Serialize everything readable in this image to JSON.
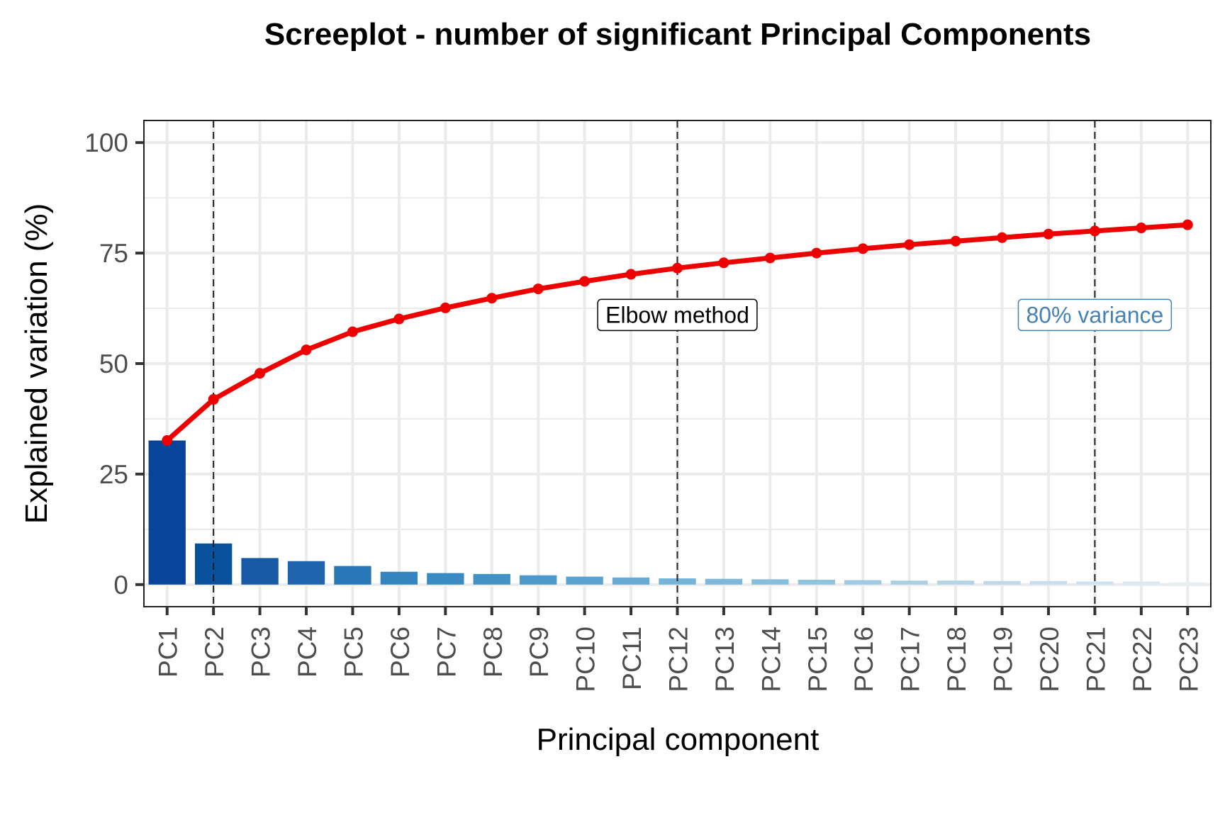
{
  "chart_data": {
    "type": "bar",
    "title": "Screeplot - number of significant Principal Components",
    "xlabel": "Principal component",
    "ylabel": "Explained variation (%)",
    "ylim": [
      -5,
      105
    ],
    "yticks": [
      0,
      25,
      50,
      75,
      100
    ],
    "grid": true,
    "categories": [
      "PC1",
      "PC2",
      "PC3",
      "PC4",
      "PC5",
      "PC6",
      "PC7",
      "PC8",
      "PC9",
      "PC10",
      "PC11",
      "PC12",
      "PC13",
      "PC14",
      "PC15",
      "PC16",
      "PC17",
      "PC18",
      "PC19",
      "PC20",
      "PC21",
      "PC22",
      "PC23"
    ],
    "series": [
      {
        "kind": "bar",
        "values": [
          32.6,
          9.3,
          6.0,
          5.3,
          4.2,
          2.9,
          2.6,
          2.4,
          2.1,
          1.8,
          1.6,
          1.4,
          1.3,
          1.2,
          1.1,
          1.0,
          0.9,
          0.9,
          0.8,
          0.8,
          0.7,
          0.7,
          0.5
        ]
      },
      {
        "kind": "line",
        "color": "#ee0000",
        "values": [
          32.6,
          41.9,
          47.8,
          53.1,
          57.2,
          60.1,
          62.6,
          64.8,
          66.9,
          68.6,
          70.2,
          71.6,
          72.8,
          73.9,
          75.0,
          76.0,
          76.9,
          77.7,
          78.5,
          79.3,
          80.0,
          80.7,
          81.4
        ]
      }
    ],
    "bar_colors": [
      "#08459a",
      "#09519d",
      "#1759a4",
      "#1f64ac",
      "#2a77b8",
      "#3484c0",
      "#3a8ac3",
      "#4292c6",
      "#4b99ca",
      "#5aa2cf",
      "#66abd3",
      "#74b4d8",
      "#7db8da",
      "#85bddc",
      "#91c3de",
      "#9fcae1",
      "#a9cfe5",
      "#b3d3e8",
      "#bed9ec",
      "#c8ddf0",
      "#d0e2f2",
      "#dbe9f6",
      "#e6eff9"
    ],
    "vlines": [
      {
        "category": "PC2",
        "style": "dashed"
      },
      {
        "category": "PC12",
        "style": "dashed"
      },
      {
        "category": "PC21",
        "style": "dashed"
      }
    ],
    "annotations": [
      {
        "text": "Elbow method",
        "category": "PC12",
        "y": 61,
        "color": "#000000"
      },
      {
        "text": "80% variance",
        "category": "PC21",
        "y": 61,
        "color": "#4682b4"
      }
    ]
  }
}
